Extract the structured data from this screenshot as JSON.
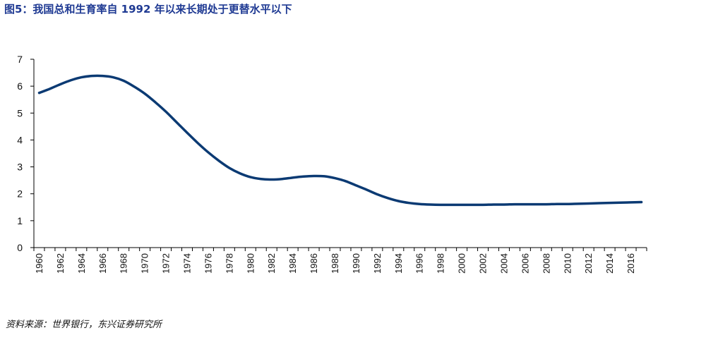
{
  "header": {
    "title": "图5：我国总和生育率自 1992 年以来长期处于更替水平以下"
  },
  "footer": {
    "source": "资料来源：世界银行，东兴证券研究所"
  },
  "chart_data": {
    "type": "line",
    "title": "图5：我国总和生育率自 1992 年以来长期处于更替水平以下",
    "xlabel": "",
    "ylabel": "",
    "xlim": [
      1960,
      2017
    ],
    "ylim": [
      0,
      7
    ],
    "yticks": [
      0,
      1,
      2,
      3,
      4,
      5,
      6,
      7
    ],
    "xticks": [
      1960,
      1962,
      1964,
      1966,
      1968,
      1970,
      1972,
      1974,
      1976,
      1978,
      1980,
      1982,
      1984,
      1986,
      1988,
      1990,
      1992,
      1994,
      1996,
      1998,
      2000,
      2002,
      2004,
      2006,
      2008,
      2010,
      2012,
      2014,
      2016
    ],
    "grid": false,
    "legend": "none",
    "color": "#0B3A73",
    "series": [
      {
        "x": [
          1960,
          1961,
          1962,
          1963,
          1964,
          1965,
          1966,
          1967,
          1968,
          1969,
          1970,
          1971,
          1972,
          1973,
          1974,
          1975,
          1976,
          1977,
          1978,
          1979,
          1980,
          1981,
          1982,
          1983,
          1984,
          1985,
          1986,
          1987,
          1988,
          1989,
          1990,
          1991,
          1992,
          1993,
          1994,
          1995,
          1996,
          1997,
          1998,
          1999,
          2000,
          2001,
          2002,
          2003,
          2004,
          2005,
          2006,
          2007,
          2008,
          2009,
          2010,
          2011,
          2012,
          2013,
          2014,
          2015,
          2016,
          2017
        ],
        "values": [
          5.75,
          5.9,
          6.07,
          6.22,
          6.33,
          6.38,
          6.38,
          6.33,
          6.2,
          5.98,
          5.72,
          5.4,
          5.05,
          4.66,
          4.27,
          3.89,
          3.54,
          3.23,
          2.96,
          2.76,
          2.62,
          2.55,
          2.53,
          2.55,
          2.6,
          2.64,
          2.66,
          2.65,
          2.58,
          2.47,
          2.31,
          2.15,
          1.98,
          1.84,
          1.73,
          1.66,
          1.62,
          1.6,
          1.59,
          1.59,
          1.59,
          1.59,
          1.59,
          1.6,
          1.6,
          1.61,
          1.61,
          1.61,
          1.61,
          1.62,
          1.62,
          1.63,
          1.64,
          1.65,
          1.66,
          1.67,
          1.68,
          1.69
        ]
      }
    ]
  }
}
